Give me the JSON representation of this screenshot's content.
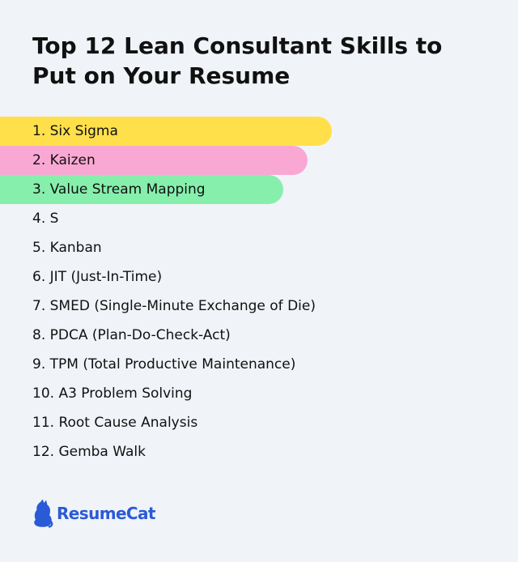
{
  "title": "Top 12 Lean Consultant Skills to Put on Your Resume",
  "skills": [
    {
      "label": "1. Six Sigma",
      "highlight": "#ffe04b"
    },
    {
      "label": "2. Kaizen",
      "highlight": "#f9a8d4"
    },
    {
      "label": "3. Value Stream Mapping",
      "highlight": "#86efac"
    },
    {
      "label": "4. S"
    },
    {
      "label": "5. Kanban"
    },
    {
      "label": "6. JIT (Just-In-Time)"
    },
    {
      "label": "7. SMED (Single-Minute Exchange of Die)"
    },
    {
      "label": "8. PDCA (Plan-Do-Check-Act)"
    },
    {
      "label": "9. TPM (Total Productive Maintenance)"
    },
    {
      "label": "10. A3 Problem Solving"
    },
    {
      "label": "11. Root Cause Analysis"
    },
    {
      "label": "12. Gemba Walk"
    }
  ],
  "logo": {
    "text": "ResumeCat",
    "icon": "cat-icon",
    "color": "#2a5bd7"
  },
  "colors": {
    "background": "#f0f3f8",
    "text": "#111111"
  }
}
